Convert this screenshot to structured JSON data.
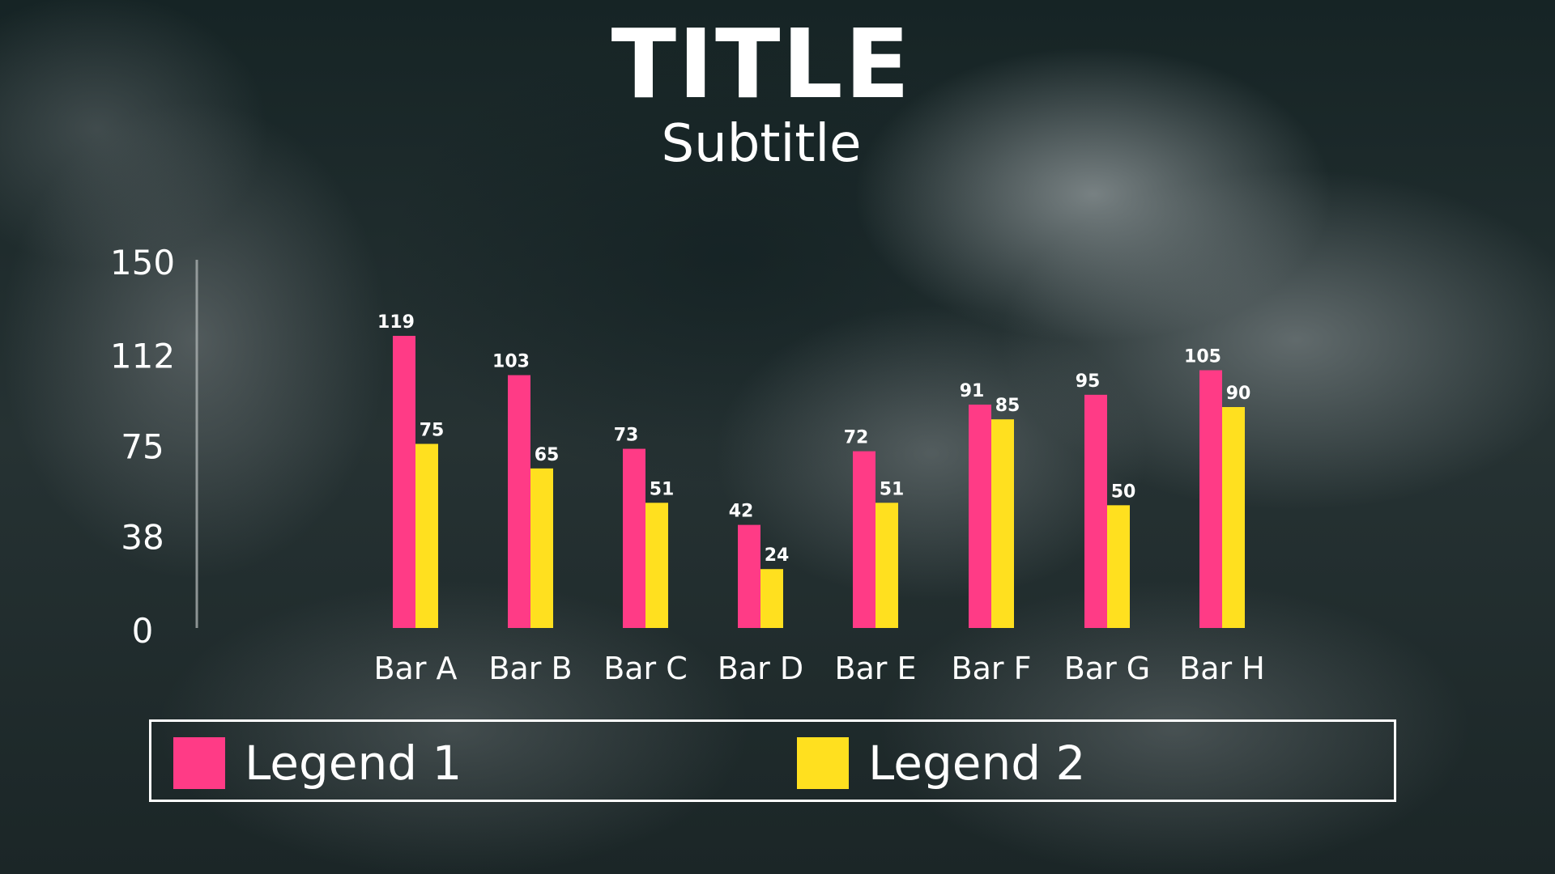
{
  "chart_data": {
    "type": "bar",
    "title": "TITLE",
    "subtitle": "Subtitle",
    "xlabel": "",
    "ylabel": "",
    "ylim": [
      0,
      150
    ],
    "yticks": [
      "0",
      "38",
      "75",
      "112",
      "150"
    ],
    "grid": false,
    "legend_position": "bottom",
    "categories": [
      "Bar A",
      "Bar B",
      "Bar C",
      "Bar D",
      "Bar E",
      "Bar F",
      "Bar G",
      "Bar H"
    ],
    "series": [
      {
        "name": "Legend 1",
        "color": "#ff3b86",
        "values": [
          119,
          103,
          73,
          42,
          72,
          91,
          95,
          105
        ]
      },
      {
        "name": "Legend 2",
        "color": "#ffe01f",
        "values": [
          75,
          65,
          51,
          24,
          51,
          85,
          50,
          90
        ]
      }
    ]
  },
  "colors": {
    "text": "#ffffff",
    "axis": "#a8aeae"
  }
}
